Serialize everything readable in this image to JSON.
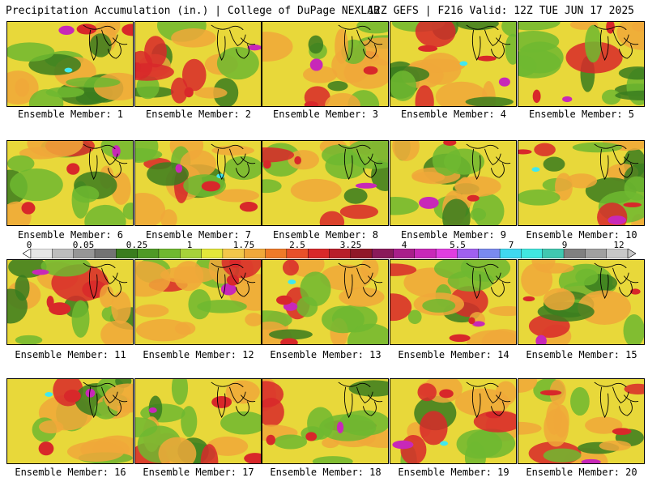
{
  "header": {
    "left": "Precipitation Accumulation (in.) | College of DuPage NEXLAB",
    "right": "12Z GEFS | F216 Valid: 12Z TUE JUN 17 2025"
  },
  "panel_prefix": "Ensemble Member: ",
  "members": [
    {
      "label": "Ensemble Member: 1"
    },
    {
      "label": "Ensemble Member: 2"
    },
    {
      "label": "Ensemble Member: 3"
    },
    {
      "label": "Ensemble Member: 4"
    },
    {
      "label": "Ensemble Member: 5"
    },
    {
      "label": "Ensemble Member: 6"
    },
    {
      "label": "Ensemble Member: 7"
    },
    {
      "label": "Ensemble Member: 8"
    },
    {
      "label": "Ensemble Member: 9"
    },
    {
      "label": "Ensemble Member: 10"
    },
    {
      "label": "Ensemble Member: 11"
    },
    {
      "label": "Ensemble Member: 12"
    },
    {
      "label": "Ensemble Member: 13"
    },
    {
      "label": "Ensemble Member: 14"
    },
    {
      "label": "Ensemble Member: 15"
    },
    {
      "label": "Ensemble Member: 16"
    },
    {
      "label": "Ensemble Member: 17"
    },
    {
      "label": "Ensemble Member: 18"
    },
    {
      "label": "Ensemble Member: 19"
    },
    {
      "label": "Ensemble Member: 20"
    }
  ],
  "colorbar": {
    "tick_labels": [
      "0",
      "0.05",
      "0.25",
      "1",
      "1.75",
      "2.5",
      "3.25",
      "4",
      "5.5",
      "7",
      "9",
      "12"
    ],
    "colors": [
      "#e6e6e6",
      "#bdbdbd",
      "#969696",
      "#737373",
      "#3a7d1e",
      "#4f9a26",
      "#6fb830",
      "#a6d23a",
      "#e3e83a",
      "#f2c84a",
      "#f0a83a",
      "#f07a28",
      "#e8502a",
      "#d8282a",
      "#b81e2a",
      "#901828",
      "#8a1a5a",
      "#a81e8a",
      "#c828b8",
      "#e03ee0",
      "#a060f0",
      "#7a8af0",
      "#40d8f0",
      "#40e8e0",
      "#40c8b0",
      "#808080",
      "#a0a0a0",
      "#c8c8c8"
    ]
  },
  "map_colors": {
    "light_green": "#6fb830",
    "dark_green": "#3a7d1e",
    "yellow": "#e8d83a",
    "orange": "#f0a83a",
    "red": "#d8282a",
    "magenta": "#c828b8",
    "cyan": "#40e8f0",
    "gray": "#9a9a9a"
  }
}
